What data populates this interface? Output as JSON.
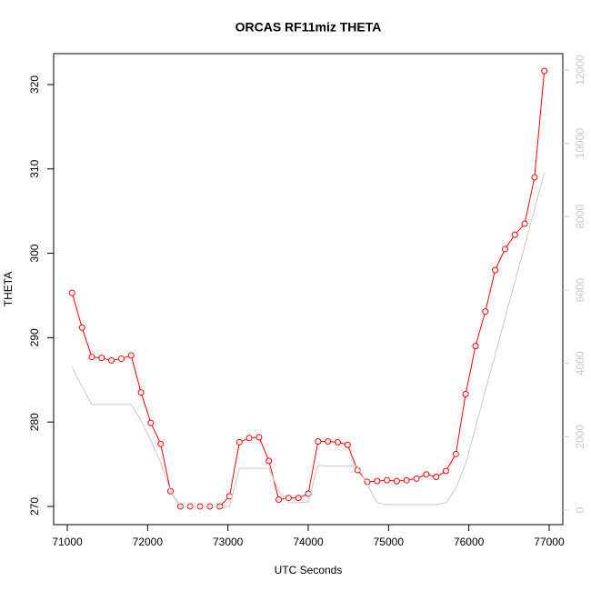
{
  "chart_data": {
    "type": "line",
    "title": "ORCAS RF11miz THETA",
    "xlabel": "UTC Seconds",
    "ylabel": "THETA",
    "x": [
      71060,
      71183,
      71305,
      71428,
      71550,
      71673,
      71795,
      71918,
      72040,
      72163,
      72285,
      72408,
      72530,
      72653,
      72775,
      72898,
      73020,
      73143,
      73265,
      73388,
      73510,
      73633,
      73755,
      73878,
      74000,
      74123,
      74245,
      74368,
      74490,
      74613,
      74735,
      74858,
      74980,
      75103,
      75225,
      75348,
      75470,
      75593,
      75715,
      75838,
      75960,
      76083,
      76205,
      76328,
      76450,
      76573,
      76695,
      76818,
      76940
    ],
    "series": [
      {
        "color": "#ff0000",
        "markers": true,
        "values": [
          295.3,
          291.2,
          287.7,
          287.6,
          287.3,
          287.5,
          287.9,
          283.5,
          279.9,
          277.4,
          271.8,
          270.0,
          270.0,
          270.0,
          270.0,
          270.0,
          271.2,
          277.6,
          278.1,
          278.2,
          275.4,
          270.8,
          271.0,
          271.0,
          271.5,
          277.7,
          277.7,
          277.6,
          277.3,
          274.3,
          272.9,
          273.0,
          273.1,
          273.0,
          273.1,
          273.3,
          273.8,
          273.5,
          274.2,
          276.2,
          283.3,
          289.0,
          293.1,
          298.0,
          300.5,
          302.2,
          303.5,
          309.0,
          321.6
        ]
      },
      {
        "color": "#c8c8c8",
        "markers": false,
        "axis": "y2",
        "values": [
          3900,
          3370,
          2880,
          2880,
          2880,
          2880,
          2880,
          2440,
          1900,
          1290,
          520,
          100,
          100,
          100,
          100,
          100,
          100,
          1140,
          1140,
          1140,
          1140,
          520,
          200,
          200,
          220,
          1220,
          1200,
          1200,
          1200,
          1200,
          700,
          200,
          150,
          150,
          150,
          150,
          150,
          150,
          200,
          600,
          1265,
          2256,
          3250,
          4240,
          5230,
          6220,
          7210,
          8200,
          9200
        ]
      }
    ],
    "xlim": [
      70830,
      77170
    ],
    "xticks": [
      71000,
      72000,
      73000,
      74000,
      75000,
      76000,
      77000
    ],
    "ylim": [
      267.84,
      323.66
    ],
    "yticks": [
      270,
      280,
      290,
      300,
      310,
      320
    ],
    "y2lim": [
      -397,
      12446
    ],
    "y2ticks": [
      0,
      2000,
      4000,
      6000,
      8000,
      10000,
      12000
    ],
    "y2color": "#c8c8c8"
  }
}
